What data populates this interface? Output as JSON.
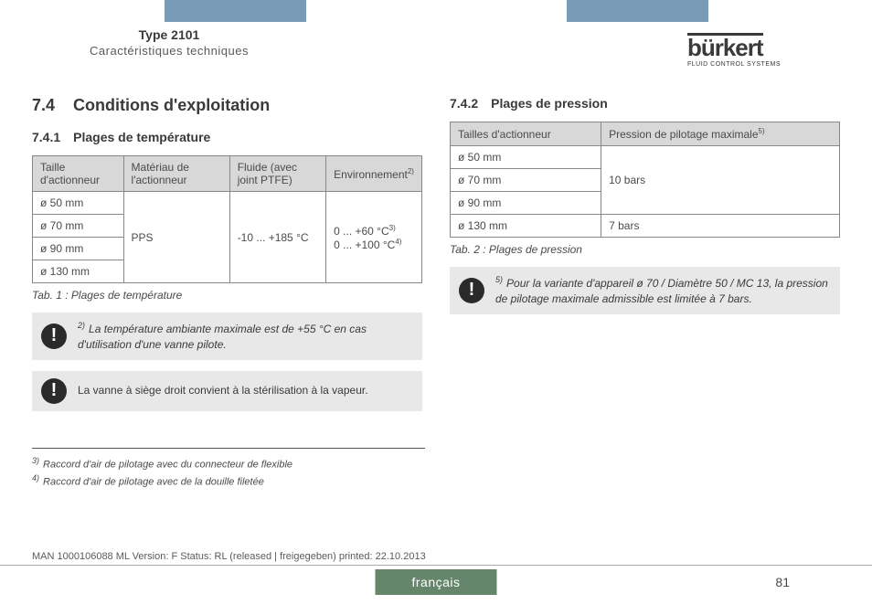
{
  "header": {
    "type_title": "Type 2101",
    "subtitle": "Caractéristiques techniques"
  },
  "logo": {
    "brand": "bürkert",
    "tagline": "FLUID CONTROL SYSTEMS"
  },
  "left": {
    "sec_num": "7.4",
    "sec_title": "Conditions d'exploitation",
    "sub_num": "7.4.1",
    "sub_title": "Plages de température",
    "table": {
      "h1": "Taille d'actionneur",
      "h2": "Matériau de l'actionneur",
      "h3": "Fluide (avec joint PTFE)",
      "h4": "Environnement",
      "h4_sup": "2)",
      "r1": "ø 50 mm",
      "r2": "ø 70 mm",
      "r3": "ø 90 mm",
      "r4": "ø 130 mm",
      "mat": "PPS",
      "fluid": "-10 ... +185 °C",
      "env1": "0 ... +60 °C",
      "env1_sup": "3)",
      "env2": "0 ... +100 °C",
      "env2_sup": "4)"
    },
    "caption": "Tab. 1 :   Plages de température",
    "note1_sup": "2)",
    "note1": "La température ambiante maximale est de +55 °C en cas d'utilisation d'une vanne pilote.",
    "note2": "La vanne à siège droit convient à la stérilisation à la vapeur."
  },
  "right": {
    "sub_num": "7.4.2",
    "sub_title": "Plages de pression",
    "table": {
      "h1": "Tailles d'actionneur",
      "h2": "Pression de pilotage maximale",
      "h2_sup": "5)",
      "r1": "ø 50 mm",
      "r2": "ø 70 mm",
      "r3": "ø 90 mm",
      "r4": "ø 130 mm",
      "p1": "10 bars",
      "p2": "7 bars"
    },
    "caption": "Tab. 2 :   Plages de pression",
    "note_sup": "5)",
    "note": "Pour la variante d'appareil ø 70 / Diamètre 50 / MC 13, la pression de pilotage maximale admissible est limitée à 7 bars."
  },
  "footnotes": {
    "f3_sup": "3)",
    "f3": "Raccord d'air de pilotage avec du connecteur de flexible",
    "f4_sup": "4)",
    "f4": "Raccord d'air de pilotage avec de la douille filetée"
  },
  "footer": {
    "meta": "MAN  1000106088  ML  Version: F Status: RL (released | freigegeben)  printed: 22.10.2013",
    "lang": "français",
    "page": "81"
  }
}
